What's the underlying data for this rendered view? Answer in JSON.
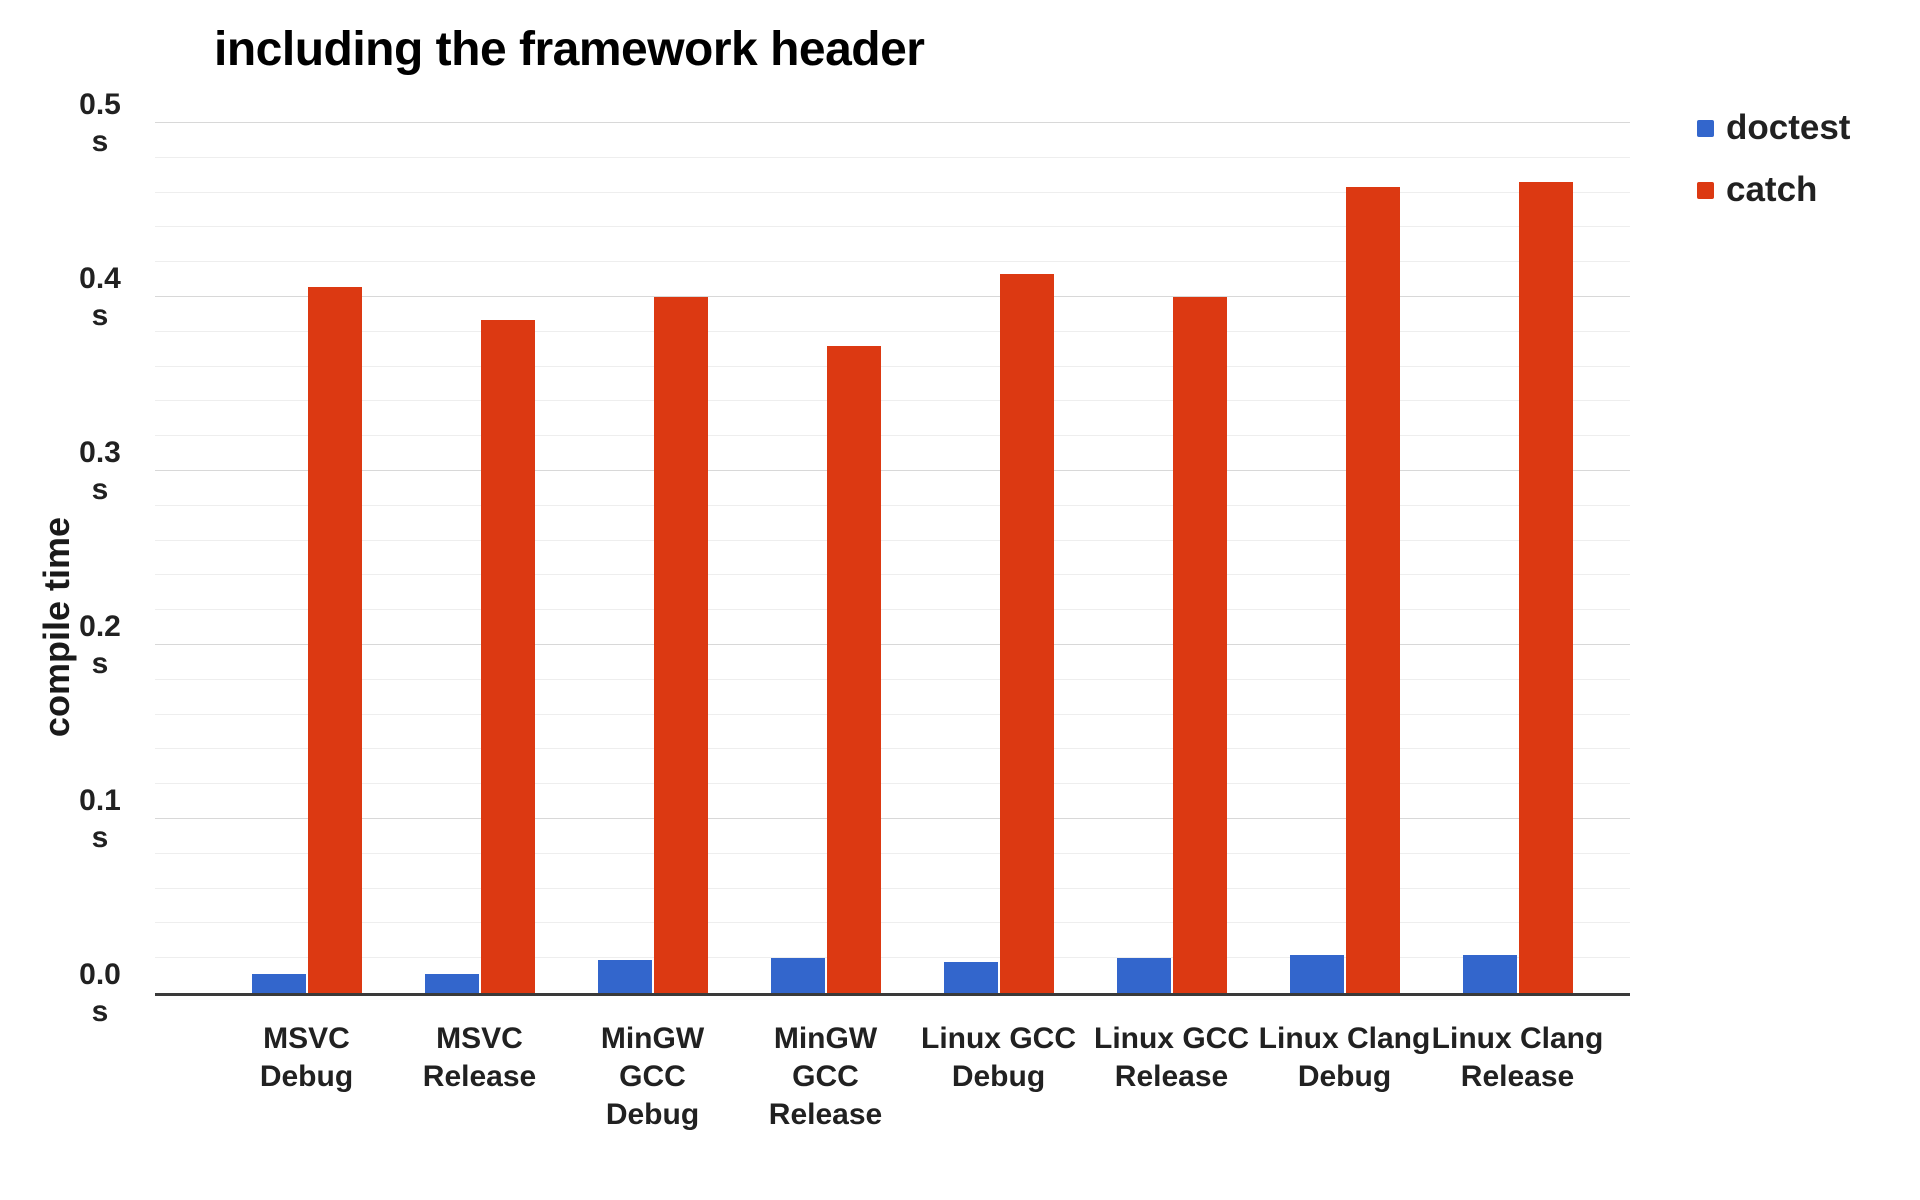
{
  "title": "including the framework header",
  "y_axis": {
    "title": "compile time",
    "unit": "s",
    "ticks": [
      "0.5",
      "0.4",
      "0.3",
      "0.2",
      "0.1",
      "0.0"
    ]
  },
  "legend": {
    "position": "right",
    "items": [
      {
        "label": "doctest",
        "color": "#3366cc"
      },
      {
        "label": "catch",
        "color": "#dc3912"
      }
    ]
  },
  "chart_data": {
    "type": "bar",
    "title": "including the framework header",
    "xlabel": "",
    "ylabel": "compile time",
    "unit": "s",
    "ylim": [
      0,
      0.5
    ],
    "grid": {
      "minor_step": 0.02,
      "major_step": 0.1
    },
    "legend_position": "right",
    "categories": [
      "MSVC Debug",
      "MSVC Release",
      "MinGW GCC Debug",
      "MinGW GCC Release",
      "Linux GCC Debug",
      "Linux GCC Release",
      "Linux Clang Debug",
      "Linux Clang Release"
    ],
    "category_lines": [
      [
        "MSVC",
        "Debug"
      ],
      [
        "MSVC",
        "Release"
      ],
      [
        "MinGW GCC",
        "Debug"
      ],
      [
        "MinGW GCC",
        "Release"
      ],
      [
        "Linux GCC",
        "Debug"
      ],
      [
        "Linux GCC",
        "Release"
      ],
      [
        "Linux Clang",
        "Debug"
      ],
      [
        "Linux Clang",
        "Release"
      ]
    ],
    "series": [
      {
        "name": "doctest",
        "color": "#3366cc",
        "values": [
          0.011,
          0.011,
          0.019,
          0.02,
          0.018,
          0.02,
          0.022,
          0.022
        ]
      },
      {
        "name": "catch",
        "color": "#dc3912",
        "values": [
          0.406,
          0.387,
          0.4,
          0.372,
          0.413,
          0.4,
          0.463,
          0.466
        ]
      }
    ]
  }
}
